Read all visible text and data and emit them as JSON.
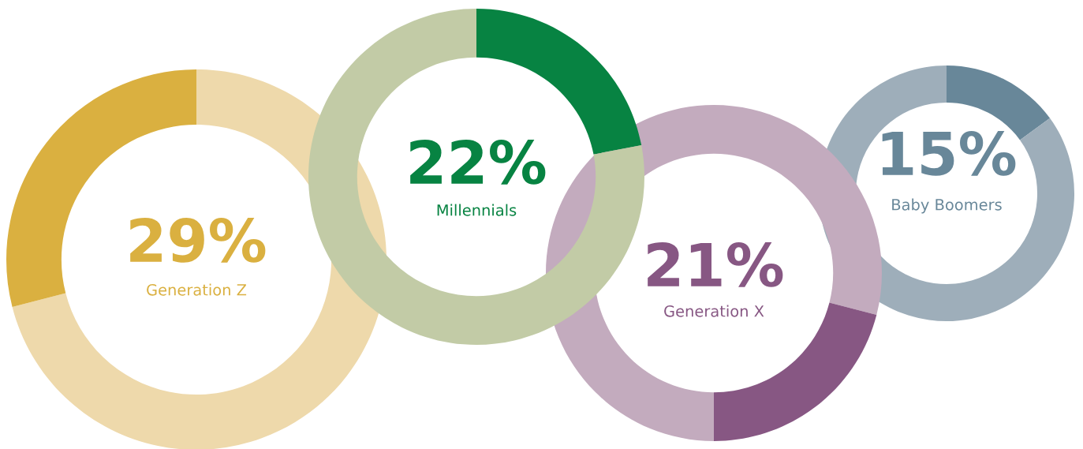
{
  "chart_data": [
    {
      "type": "donut",
      "title": "29%",
      "subtitle": "Generation Z",
      "categories": [
        null,
        null
      ],
      "values": [
        71,
        29
      ],
      "colors": [
        "#eed9ab",
        "#dab040"
      ]
    },
    {
      "type": "donut",
      "title": "22%",
      "subtitle": "Millennials",
      "categories": [
        null,
        null
      ],
      "values": [
        22,
        78
      ],
      "colors": [
        "#078342",
        "#c2cba6"
      ]
    },
    {
      "type": "donut",
      "title": "21%",
      "subtitle": "Generation X",
      "categories": [
        null,
        null,
        null
      ],
      "values": [
        29,
        21,
        50
      ],
      "colors": [
        "#c3abbe",
        "#875783",
        "#c3abbe"
      ]
    },
    {
      "type": "donut",
      "title": "15%",
      "subtitle": "Baby Boomers",
      "categories": [
        null,
        null
      ],
      "values": [
        15,
        85
      ],
      "colors": [
        "#688799",
        "#9eaeba"
      ]
    }
  ]
}
